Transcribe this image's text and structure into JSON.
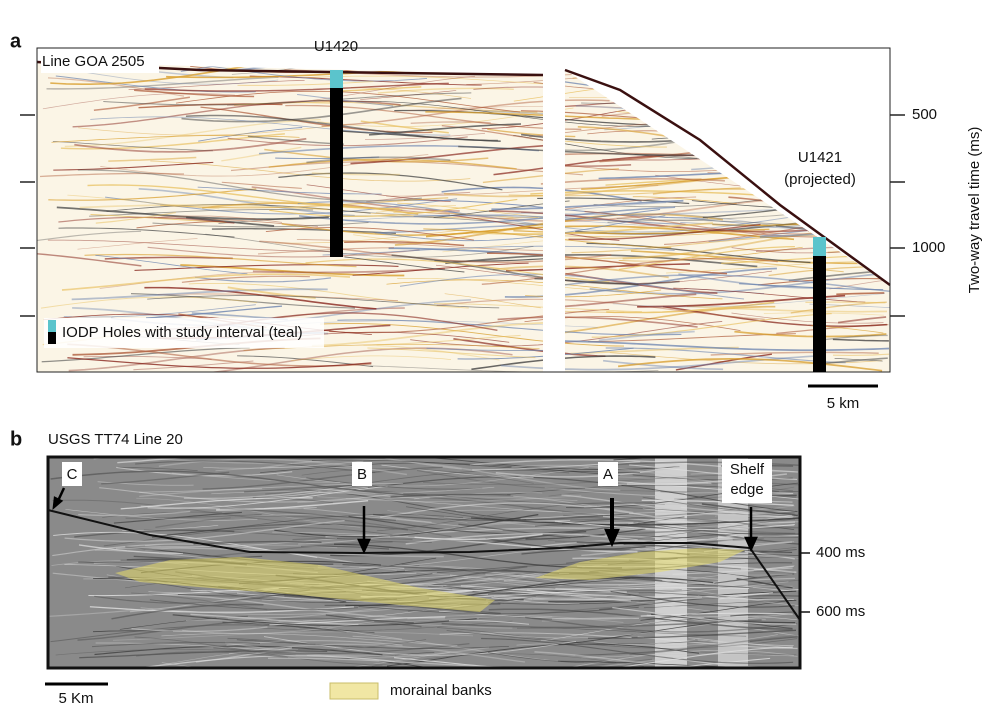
{
  "panel_a": {
    "label": "a",
    "title": "Line GOA 2505",
    "sites": [
      {
        "name": "U1420"
      },
      {
        "name": "U1421",
        "note": "(projected)"
      }
    ],
    "axis": {
      "label": "Two-way travel time (ms)",
      "ticks": [
        "500",
        "1000"
      ]
    },
    "legend": "IODP Holes with study interval (teal)",
    "scale": "5 km"
  },
  "panel_b": {
    "label": "b",
    "title": "USGS TT74 Line 20",
    "markers": [
      "C",
      "B",
      "A"
    ],
    "shelf_edge": [
      "Shelf",
      "edge"
    ],
    "axis": {
      "ticks": [
        "400 ms",
        "600 ms"
      ]
    },
    "scale": "5 Km",
    "legend": "morainal banks"
  }
}
